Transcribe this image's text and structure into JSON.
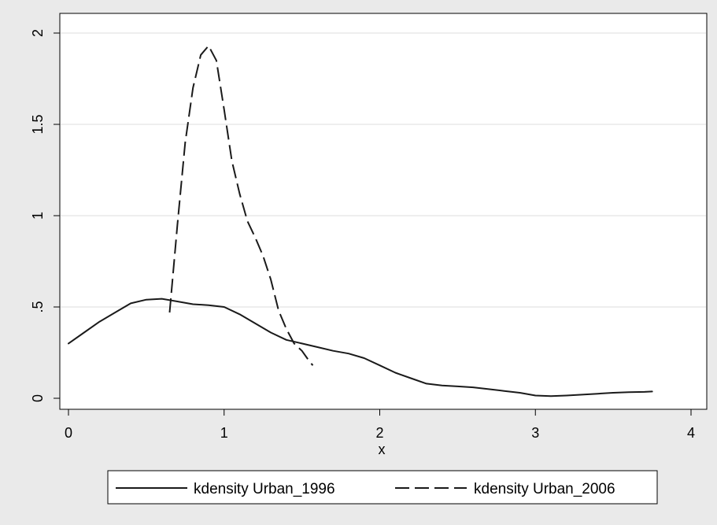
{
  "chart_data": {
    "type": "line",
    "title": "",
    "xlabel": "x",
    "ylabel": "",
    "xlim": [
      0,
      4
    ],
    "ylim": [
      0,
      2
    ],
    "x_ticks": [
      0,
      1,
      2,
      3,
      4
    ],
    "x_tick_labels": [
      "0",
      "1",
      "2",
      "3",
      "4"
    ],
    "y_ticks": [
      0,
      0.5,
      1,
      1.5,
      2
    ],
    "y_tick_labels": [
      "0",
      ".5",
      "1",
      "1.5",
      "2"
    ],
    "grid": "horizontal",
    "legend_position": "bottom",
    "series": [
      {
        "name": "kdensity Urban_1996",
        "style": "solid",
        "color": "#1a1a1a",
        "x": [
          0,
          0.1,
          0.2,
          0.3,
          0.4,
          0.5,
          0.6,
          0.7,
          0.8,
          0.9,
          1.0,
          1.1,
          1.2,
          1.3,
          1.4,
          1.5,
          1.6,
          1.7,
          1.8,
          1.9,
          2.0,
          2.1,
          2.2,
          2.3,
          2.4,
          2.5,
          2.6,
          2.7,
          2.8,
          2.9,
          3.0,
          3.1,
          3.2,
          3.3,
          3.4,
          3.5,
          3.6,
          3.7,
          3.75
        ],
        "y": [
          0.3,
          0.36,
          0.42,
          0.47,
          0.52,
          0.54,
          0.545,
          0.53,
          0.515,
          0.51,
          0.5,
          0.46,
          0.41,
          0.36,
          0.32,
          0.3,
          0.28,
          0.26,
          0.245,
          0.22,
          0.18,
          0.14,
          0.11,
          0.08,
          0.07,
          0.065,
          0.06,
          0.05,
          0.04,
          0.03,
          0.015,
          0.012,
          0.015,
          0.02,
          0.025,
          0.03,
          0.033,
          0.035,
          0.037
        ]
      },
      {
        "name": "kdensity Urban_2006",
        "style": "dashed",
        "color": "#1a1a1a",
        "x": [
          0.65,
          0.7,
          0.75,
          0.8,
          0.85,
          0.9,
          0.95,
          1.0,
          1.05,
          1.1,
          1.15,
          1.2,
          1.25,
          1.3,
          1.35,
          1.4,
          1.45,
          1.5,
          1.55,
          1.57
        ],
        "y": [
          0.47,
          0.95,
          1.4,
          1.7,
          1.88,
          1.93,
          1.85,
          1.58,
          1.3,
          1.12,
          0.97,
          0.88,
          0.78,
          0.65,
          0.48,
          0.38,
          0.3,
          0.26,
          0.2,
          0.18
        ]
      }
    ]
  }
}
